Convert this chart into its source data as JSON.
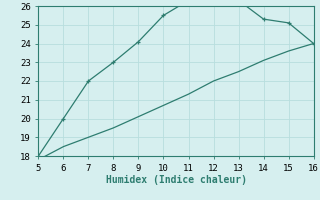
{
  "xlabel": "Humidex (Indice chaleur)",
  "upper_x": [
    5,
    6,
    7,
    8,
    9,
    10,
    11,
    12,
    13,
    14,
    15,
    16
  ],
  "upper_y": [
    18.0,
    20.0,
    22.0,
    23.0,
    24.1,
    25.5,
    26.3,
    26.3,
    26.3,
    25.3,
    25.1,
    24.0
  ],
  "lower_x": [
    5,
    6,
    7,
    8,
    9,
    10,
    11,
    12,
    13,
    14,
    15,
    16
  ],
  "lower_y": [
    17.8,
    18.5,
    19.0,
    19.5,
    20.1,
    20.7,
    21.3,
    22.0,
    22.5,
    23.1,
    23.6,
    24.0
  ],
  "line_color": "#2e7d70",
  "bg_color": "#d6efef",
  "grid_color": "#b8dede",
  "xlim": [
    5,
    16
  ],
  "ylim": [
    18,
    26
  ],
  "xticks": [
    5,
    6,
    7,
    8,
    9,
    10,
    11,
    12,
    13,
    14,
    15,
    16
  ],
  "yticks": [
    18,
    19,
    20,
    21,
    22,
    23,
    24,
    25,
    26
  ],
  "label_fontsize": 7,
  "tick_fontsize": 6.5
}
